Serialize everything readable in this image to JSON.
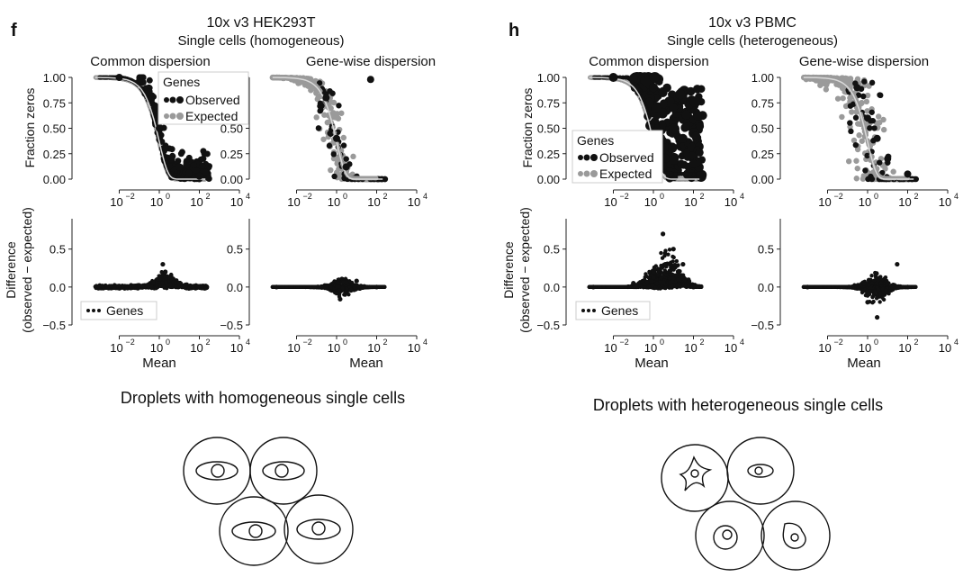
{
  "figure": {
    "panels": [
      {
        "letter": "f",
        "title": "10x v3 HEK293T",
        "subtitle": "Single cells (homogeneous)",
        "column_titles": [
          "Common dispersion",
          "Gene-wise dispersion"
        ],
        "top_ylabel": "Fraction zeros",
        "bottom_ylabel_line1": "Difference",
        "bottom_ylabel_line2": "(observed − expected)",
        "xlabel": "Mean",
        "top_legend": {
          "title": "Genes",
          "entries": [
            "Observed",
            "Expected"
          ]
        },
        "bottom_legend": {
          "entries": [
            "Genes"
          ]
        },
        "illustration_title": "Droplets with homogeneous single cells"
      },
      {
        "letter": "h",
        "title": "10x v3 PBMC",
        "subtitle": "Single cells (heterogeneous)",
        "column_titles": [
          "Common dispersion",
          "Gene-wise dispersion"
        ],
        "top_ylabel": "Fraction zeros",
        "bottom_ylabel_line1": "Difference",
        "bottom_ylabel_line2": "(observed − expected)",
        "xlabel": "Mean",
        "top_legend": {
          "title": "Genes",
          "entries": [
            "Observed",
            "Expected"
          ]
        },
        "bottom_legend": {
          "entries": [
            "Genes"
          ]
        },
        "illustration_title": "Droplets with heterogeneous single cells"
      }
    ]
  },
  "colors": {
    "observed": "#111111",
    "expected": "#9a9a9a",
    "curve": "#d9d9d9",
    "axis": "#222222"
  },
  "chart_data": [
    {
      "type": "scatter",
      "panel": "f",
      "title": "Common dispersion",
      "xlabel": "",
      "ylabel": "Fraction zeros",
      "xscale": "log",
      "xlim": [
        0.0001,
        10000
      ],
      "ylim": [
        0,
        1
      ],
      "xtick_exponents": [
        -2,
        0,
        2,
        4
      ],
      "yticks": [
        "0.00",
        "0.25",
        "0.50",
        "0.75",
        "1.00"
      ],
      "legend": "top-right",
      "series": [
        {
          "name": "Observed",
          "color": "#111111",
          "points": [
            [
              0.01,
              1.0
            ],
            [
              0.1,
              0.96
            ],
            [
              0.3,
              0.85
            ],
            [
              0.6,
              0.72
            ],
            [
              1,
              0.5
            ],
            [
              2,
              0.3
            ],
            [
              4,
              0.2
            ],
            [
              10,
              0.12
            ],
            [
              30,
              0.06
            ],
            [
              100,
              0.03
            ]
          ]
        },
        {
          "name": "Expected",
          "color": "#9a9a9a",
          "points": [
            [
              0.001,
              1.0
            ],
            [
              0.01,
              0.99
            ],
            [
              0.1,
              0.91
            ],
            [
              0.3,
              0.74
            ],
            [
              1,
              0.37
            ],
            [
              3,
              0.09
            ],
            [
              10,
              0.02
            ],
            [
              100,
              0.0
            ]
          ]
        }
      ]
    },
    {
      "type": "scatter",
      "panel": "f",
      "title": "Gene-wise dispersion",
      "xlabel": "",
      "ylabel": "",
      "xscale": "log",
      "xlim": [
        0.0001,
        10000
      ],
      "ylim": [
        0,
        1
      ],
      "xtick_exponents": [
        -2,
        0,
        2,
        4
      ],
      "yticks": [
        "0.00",
        "0.25",
        "0.50",
        "0.75",
        "1.00"
      ],
      "series": [
        {
          "name": "Observed",
          "color": "#111111",
          "points": [
            [
              0.3,
              0.8
            ],
            [
              1,
              0.4
            ],
            [
              3,
              0.12
            ],
            [
              50,
              0.98
            ]
          ]
        },
        {
          "name": "Expected",
          "color": "#9a9a9a",
          "points": [
            [
              0.001,
              1.0
            ],
            [
              0.1,
              0.93
            ],
            [
              0.5,
              0.75
            ],
            [
              1,
              0.5
            ],
            [
              3,
              0.2
            ],
            [
              10,
              0.06
            ],
            [
              100,
              0.0
            ]
          ]
        }
      ]
    },
    {
      "type": "scatter",
      "panel": "f",
      "title": "",
      "xlabel": "Mean",
      "ylabel": "Difference (observed − expected)",
      "xscale": "log",
      "xlim": [
        0.0001,
        10000
      ],
      "ylim": [
        -0.5,
        0.9
      ],
      "xtick_exponents": [
        -2,
        0,
        2,
        4
      ],
      "yticks": [
        "−0.5",
        "0.0",
        "0.5"
      ],
      "legend": "bottom-left",
      "series": [
        {
          "name": "Genes",
          "color": "#111111",
          "points": [
            [
              0.001,
              0.0
            ],
            [
              0.1,
              0.02
            ],
            [
              1,
              0.1
            ],
            [
              1.5,
              0.3
            ],
            [
              2,
              0.2
            ],
            [
              10,
              0.05
            ],
            [
              100,
              0.0
            ]
          ]
        }
      ]
    },
    {
      "type": "scatter",
      "panel": "f",
      "title": "",
      "xlabel": "Mean",
      "ylabel": "",
      "xscale": "log",
      "xlim": [
        0.0001,
        10000
      ],
      "ylim": [
        -0.5,
        0.9
      ],
      "xtick_exponents": [
        -2,
        0,
        2,
        4
      ],
      "yticks": [
        "−0.5",
        "0.0",
        "0.5"
      ],
      "series": [
        {
          "name": "Genes",
          "color": "#111111",
          "points": [
            [
              0.001,
              0.0
            ],
            [
              1,
              -0.08
            ],
            [
              1.5,
              -0.16
            ],
            [
              3,
              0.06
            ],
            [
              10,
              0.08
            ],
            [
              100,
              0.0
            ]
          ]
        }
      ]
    },
    {
      "type": "scatter",
      "panel": "h",
      "title": "Common dispersion",
      "xlabel": "",
      "ylabel": "Fraction zeros",
      "xscale": "log",
      "xlim": [
        0.0001,
        10000
      ],
      "ylim": [
        0,
        1
      ],
      "xtick_exponents": [
        -2,
        0,
        2,
        4
      ],
      "yticks": [
        "0.00",
        "0.25",
        "0.50",
        "0.75",
        "1.00"
      ],
      "legend": "bottom-left",
      "series": [
        {
          "name": "Observed",
          "color": "#111111",
          "points": [
            [
              0.01,
              1.0
            ],
            [
              0.1,
              0.99
            ],
            [
              1,
              0.9
            ],
            [
              3,
              0.85
            ],
            [
              10,
              0.7
            ],
            [
              30,
              0.4
            ],
            [
              100,
              0.15
            ]
          ]
        },
        {
          "name": "Expected",
          "color": "#9a9a9a",
          "points": [
            [
              0.001,
              1.0
            ],
            [
              0.1,
              0.9
            ],
            [
              1,
              0.37
            ],
            [
              3,
              0.08
            ],
            [
              30,
              0.0
            ]
          ]
        }
      ]
    },
    {
      "type": "scatter",
      "panel": "h",
      "title": "Gene-wise dispersion",
      "xlabel": "",
      "ylabel": "",
      "xscale": "log",
      "xlim": [
        0.0001,
        10000
      ],
      "ylim": [
        0,
        1
      ],
      "xtick_exponents": [
        -2,
        0,
        2,
        4
      ],
      "yticks": [
        "0.00",
        "0.25",
        "0.50",
        "0.75",
        "1.00"
      ],
      "series": [
        {
          "name": "Observed",
          "color": "#111111",
          "points": [
            [
              0.3,
              0.9
            ],
            [
              1,
              0.6
            ],
            [
              3,
              0.4
            ],
            [
              10,
              0.2
            ],
            [
              100,
              0.05
            ]
          ]
        },
        {
          "name": "Expected",
          "color": "#9a9a9a",
          "points": [
            [
              0.001,
              1.0
            ],
            [
              0.3,
              0.9
            ],
            [
              1,
              0.7
            ],
            [
              3,
              0.5
            ],
            [
              10,
              0.3
            ],
            [
              100,
              0.05
            ]
          ]
        }
      ]
    },
    {
      "type": "scatter",
      "panel": "h",
      "title": "",
      "xlabel": "Mean",
      "ylabel": "Difference (observed − expected)",
      "xscale": "log",
      "xlim": [
        0.0001,
        10000
      ],
      "ylim": [
        -0.5,
        0.9
      ],
      "xtick_exponents": [
        -2,
        0,
        2,
        4
      ],
      "yticks": [
        "−0.5",
        "0.0",
        "0.5"
      ],
      "legend": "bottom-left",
      "series": [
        {
          "name": "Genes",
          "color": "#111111",
          "points": [
            [
              0.001,
              0.0
            ],
            [
              0.1,
              0.05
            ],
            [
              1,
              0.2
            ],
            [
              3,
              0.7
            ],
            [
              10,
              0.5
            ],
            [
              30,
              0.3
            ],
            [
              100,
              0.0
            ]
          ]
        }
      ]
    },
    {
      "type": "scatter",
      "panel": "h",
      "title": "",
      "xlabel": "Mean",
      "ylabel": "",
      "xscale": "log",
      "xlim": [
        0.0001,
        10000
      ],
      "ylim": [
        -0.5,
        0.9
      ],
      "xtick_exponents": [
        -2,
        0,
        2,
        4
      ],
      "yticks": [
        "−0.5",
        "0.0",
        "0.5"
      ],
      "series": [
        {
          "name": "Genes",
          "color": "#111111",
          "points": [
            [
              0.001,
              0.0
            ],
            [
              1,
              -0.2
            ],
            [
              3,
              -0.4
            ],
            [
              10,
              0.05
            ],
            [
              30,
              0.3
            ],
            [
              100,
              0.0
            ]
          ]
        }
      ]
    }
  ]
}
